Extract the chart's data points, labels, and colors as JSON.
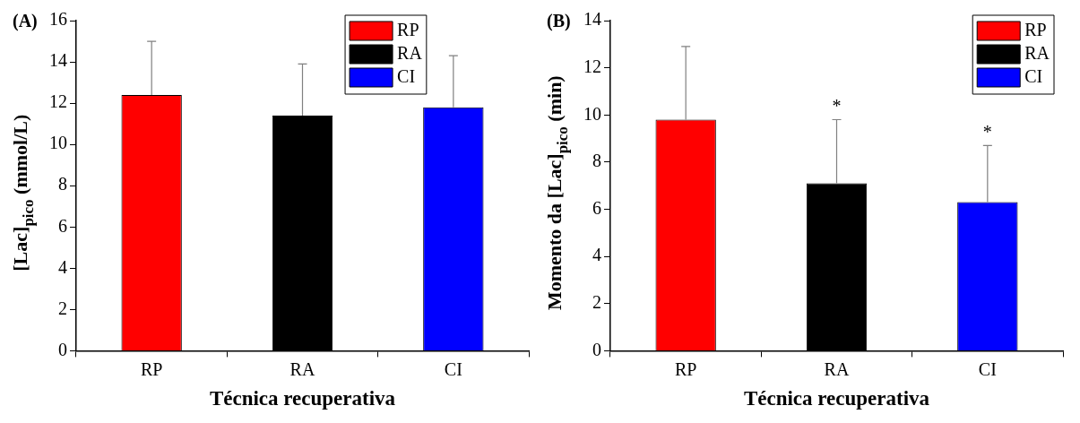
{
  "chart_data": [
    {
      "type": "bar",
      "title": "(A)",
      "xlabel": "Técnica recuperativa",
      "ylabel": "[Lac]$_{pico}$ (mmol/L)",
      "categories": [
        "RP",
        "RA",
        "CI"
      ],
      "ylim": [
        0,
        16
      ],
      "yticks": [
        0,
        2,
        4,
        6,
        8,
        10,
        12,
        14,
        16
      ],
      "grid": false,
      "legend": "top right",
      "series": [
        {
          "name": "RP",
          "color": "#ff0000",
          "values": [
            12.4,
            null,
            null
          ],
          "errors": [
            [
              12.4,
              15.0
            ],
            null,
            null
          ]
        },
        {
          "name": "RA",
          "color": "#000000",
          "values": [
            null,
            11.4,
            null
          ],
          "errors": [
            null,
            [
              11.4,
              13.9
            ],
            null
          ]
        },
        {
          "name": "CI",
          "color": "#0000ff",
          "values": [
            null,
            null,
            11.8
          ],
          "errors": [
            null,
            null,
            [
              11.8,
              14.3
            ]
          ]
        }
      ]
    },
    {
      "type": "bar",
      "title": "(B)",
      "xlabel": "Técnica recuperativa",
      "ylabel": "Momento da [Lac]$_{pico}$ (min)",
      "categories": [
        "RP",
        "RA",
        "CI"
      ],
      "ylim": [
        0,
        14
      ],
      "yticks": [
        0,
        2,
        4,
        6,
        8,
        10,
        12,
        14
      ],
      "grid": false,
      "legend": "top right",
      "annotations": [
        {
          "text": "*",
          "x": "RA",
          "y": 9.8
        },
        {
          "text": "*",
          "x": "CI",
          "y": 8.7
        }
      ],
      "series": [
        {
          "name": "RP",
          "color": "#ff0000",
          "values": [
            9.8,
            null,
            null
          ],
          "errors": [
            [
              9.8,
              12.9
            ],
            null,
            null
          ]
        },
        {
          "name": "RA",
          "color": "#000000",
          "values": [
            null,
            7.1,
            null
          ],
          "errors": [
            null,
            [
              7.1,
              9.8
            ],
            null
          ]
        },
        {
          "name": "CI",
          "color": "#0000ff",
          "values": [
            null,
            null,
            6.3
          ],
          "errors": [
            null,
            null,
            [
              6.3,
              8.7
            ]
          ]
        }
      ]
    }
  ]
}
